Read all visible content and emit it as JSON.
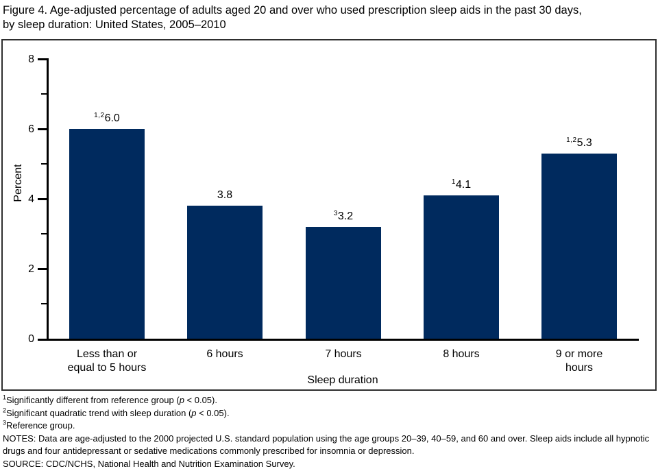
{
  "header": {
    "line1": "Figure 4. Age-adjusted percentage of adults aged 20 and over who used prescription sleep aids in the past 30 days,",
    "line2": "by sleep duration: United States, 2005–2010"
  },
  "chart_data": {
    "type": "bar",
    "title": "Figure 4. Age-adjusted percentage of adults aged 20 and over who used prescription sleep aids in the past 30 days, by sleep duration: United States, 2005–2010",
    "xlabel": "Sleep duration",
    "ylabel": "Percent",
    "ylim": [
      0,
      8
    ],
    "yticks": [
      0,
      2,
      4,
      6,
      8
    ],
    "minor_yticks": [
      1,
      3,
      5,
      7
    ],
    "ytick_labels": [
      "8",
      "6",
      "4",
      "2",
      "0"
    ],
    "categories": [
      "Less than or equal to 5 hours",
      "6 hours",
      "7 hours",
      "8 hours",
      "9 or more hours"
    ],
    "category_lines": [
      [
        "Less than or",
        "equal to 5 hours"
      ],
      [
        "6 hours",
        ""
      ],
      [
        "7 hours",
        ""
      ],
      [
        "8 hours",
        ""
      ],
      [
        "9 or more",
        "hours"
      ]
    ],
    "values": [
      6.0,
      3.8,
      3.2,
      4.1,
      5.3
    ],
    "bar_labels": [
      {
        "sup": "1,2",
        "text": "6.0"
      },
      {
        "sup": "",
        "text": "3.8"
      },
      {
        "sup": "3",
        "text": "3.2"
      },
      {
        "sup": "1",
        "text": "4.1"
      },
      {
        "sup": "1,2",
        "text": "5.3"
      }
    ],
    "bar_color": "#002a5e",
    "grid": false,
    "legend": false
  },
  "footnotes": [
    {
      "sup": "1",
      "pre": "Significantly different from reference group (",
      "em": "p",
      "post": " < 0.05)."
    },
    {
      "sup": "2",
      "pre": "Significant quadratic trend with sleep duration (",
      "em": "p",
      "post": " < 0.05)."
    },
    {
      "sup": "3",
      "pre": "Reference group.",
      "em": "",
      "post": ""
    },
    {
      "sup": "",
      "pre": "NOTES: Data are age-adjusted to the 2000 projected U.S. standard population using the age groups 20–39, 40–59, and 60 and over. Sleep aids include all hypnotic drugs and four antidepressant or sedative medications commonly prescribed for insomnia or depression.",
      "em": "",
      "post": ""
    },
    {
      "sup": "",
      "pre": "SOURCE: CDC/NCHS, National Health and Nutrition Examination Survey.",
      "em": "",
      "post": ""
    }
  ]
}
